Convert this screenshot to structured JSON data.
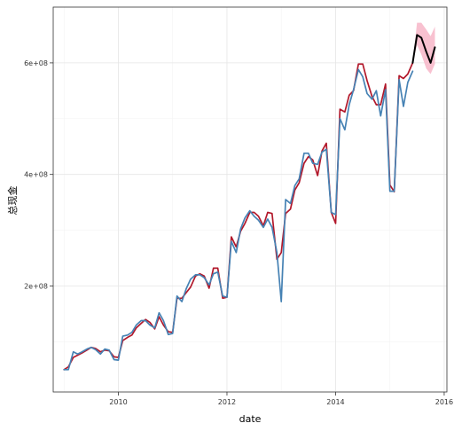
{
  "chart_data": {
    "type": "line",
    "xlabel": "date",
    "ylabel": "总现金",
    "xlim": [
      2008.8,
      2016.05
    ],
    "ylim": [
      10000000,
      700000000
    ],
    "grid": true,
    "x_ticks": [
      2010,
      2012,
      2014,
      2016
    ],
    "x_tick_labels": [
      "2010",
      "2012",
      "2014",
      "2016"
    ],
    "y_ticks": [
      200000000,
      400000000,
      600000000
    ],
    "y_tick_labels": [
      "2e+08",
      "4e+08",
      "6e+08"
    ],
    "colors": {
      "fitted": "#b2182b",
      "actual": "#4682b4",
      "forecast": "#000000",
      "interval": "#f7b6c8",
      "grid": "#e6e6e6",
      "border": "#333333"
    },
    "series": [
      {
        "key": "fitted",
        "x": [
          2009.0,
          2009.08,
          2009.17,
          2009.25,
          2009.33,
          2009.42,
          2009.5,
          2009.58,
          2009.67,
          2009.75,
          2009.83,
          2009.92,
          2010.0,
          2010.08,
          2010.17,
          2010.25,
          2010.33,
          2010.42,
          2010.5,
          2010.58,
          2010.67,
          2010.75,
          2010.83,
          2010.92,
          2011.0,
          2011.08,
          2011.17,
          2011.25,
          2011.33,
          2011.42,
          2011.5,
          2011.58,
          2011.67,
          2011.75,
          2011.83,
          2011.92,
          2012.0,
          2012.08,
          2012.17,
          2012.25,
          2012.33,
          2012.42,
          2012.5,
          2012.58,
          2012.67,
          2012.75,
          2012.83,
          2012.92,
          2013.0,
          2013.08,
          2013.17,
          2013.25,
          2013.33,
          2013.42,
          2013.5,
          2013.58,
          2013.67,
          2013.75,
          2013.83,
          2013.92,
          2014.0,
          2014.08,
          2014.17,
          2014.25,
          2014.33,
          2014.42,
          2014.5,
          2014.58,
          2014.67,
          2014.75,
          2014.83,
          2014.92,
          2015.0,
          2015.08,
          2015.17,
          2015.25,
          2015.33,
          2015.42
        ],
        "values": [
          50000000,
          55000000,
          72000000,
          76000000,
          80000000,
          85000000,
          90000000,
          88000000,
          82000000,
          85000000,
          84000000,
          73000000,
          72000000,
          102000000,
          108000000,
          112000000,
          125000000,
          133000000,
          140000000,
          135000000,
          123000000,
          145000000,
          130000000,
          118000000,
          117000000,
          178000000,
          178000000,
          188000000,
          198000000,
          218000000,
          222000000,
          218000000,
          196000000,
          232000000,
          232000000,
          178000000,
          180000000,
          288000000,
          270000000,
          298000000,
          312000000,
          332000000,
          332000000,
          325000000,
          308000000,
          332000000,
          330000000,
          248000000,
          260000000,
          330000000,
          338000000,
          372000000,
          385000000,
          420000000,
          432000000,
          426000000,
          398000000,
          442000000,
          456000000,
          332000000,
          312000000,
          517000000,
          512000000,
          542000000,
          550000000,
          598000000,
          598000000,
          568000000,
          540000000,
          525000000,
          525000000,
          562000000,
          381000000,
          369000000,
          577000000,
          572000000,
          580000000,
          600000000
        ]
      },
      {
        "key": "actual",
        "x": [
          2009.0,
          2009.08,
          2009.17,
          2009.25,
          2009.33,
          2009.42,
          2009.5,
          2009.58,
          2009.67,
          2009.75,
          2009.83,
          2009.92,
          2010.0,
          2010.08,
          2010.17,
          2010.25,
          2010.33,
          2010.42,
          2010.5,
          2010.58,
          2010.67,
          2010.75,
          2010.83,
          2010.92,
          2011.0,
          2011.08,
          2011.17,
          2011.25,
          2011.33,
          2011.42,
          2011.5,
          2011.58,
          2011.67,
          2011.75,
          2011.83,
          2011.92,
          2012.0,
          2012.08,
          2012.17,
          2012.25,
          2012.33,
          2012.42,
          2012.5,
          2012.58,
          2012.67,
          2012.75,
          2012.83,
          2012.92,
          2013.0,
          2013.08,
          2013.17,
          2013.25,
          2013.33,
          2013.42,
          2013.5,
          2013.58,
          2013.67,
          2013.75,
          2013.83,
          2013.92,
          2014.0,
          2014.08,
          2014.17,
          2014.25,
          2014.33,
          2014.42,
          2014.5,
          2014.58,
          2014.67,
          2014.75,
          2014.83,
          2014.92,
          2015.0,
          2015.08,
          2015.17,
          2015.25,
          2015.33,
          2015.42
        ],
        "values": [
          50000000,
          50000000,
          82000000,
          78000000,
          82000000,
          87000000,
          90000000,
          86000000,
          78000000,
          87000000,
          85000000,
          68000000,
          67000000,
          110000000,
          112000000,
          117000000,
          130000000,
          138000000,
          138000000,
          130000000,
          125000000,
          152000000,
          138000000,
          113000000,
          115000000,
          182000000,
          172000000,
          195000000,
          212000000,
          220000000,
          220000000,
          215000000,
          202000000,
          222000000,
          225000000,
          182000000,
          180000000,
          280000000,
          260000000,
          302000000,
          322000000,
          335000000,
          325000000,
          318000000,
          305000000,
          320000000,
          305000000,
          260000000,
          172000000,
          355000000,
          348000000,
          380000000,
          392000000,
          438000000,
          438000000,
          420000000,
          418000000,
          440000000,
          445000000,
          332000000,
          328000000,
          500000000,
          480000000,
          525000000,
          552000000,
          588000000,
          575000000,
          545000000,
          535000000,
          550000000,
          505000000,
          552000000,
          370000000,
          370000000,
          570000000,
          522000000,
          565000000,
          585000000
        ]
      },
      {
        "key": "forecast",
        "x": [
          2015.42,
          2015.5,
          2015.58,
          2015.67,
          2015.75,
          2015.83
        ],
        "values": [
          600000000,
          650000000,
          645000000,
          620000000,
          600000000,
          628000000
        ]
      }
    ],
    "interval": {
      "x": [
        2015.42,
        2015.5,
        2015.58,
        2015.67,
        2015.75,
        2015.83
      ],
      "upper": [
        600000000,
        672000000,
        672000000,
        660000000,
        648000000,
        665000000
      ],
      "lower": [
        600000000,
        632000000,
        615000000,
        590000000,
        580000000,
        598000000
      ]
    }
  }
}
